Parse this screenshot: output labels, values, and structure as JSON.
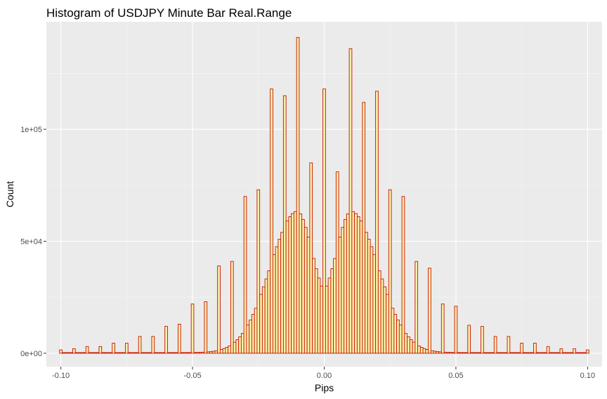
{
  "chart_data": {
    "type": "bar",
    "title": "Histogram of USDJPY Minute Bar Real.Range",
    "xlabel": "Pips",
    "ylabel": "Count",
    "xlim": [
      -0.1055,
      0.1055
    ],
    "ylim": [
      -6000,
      148000
    ],
    "xticks": [
      -0.1,
      -0.05,
      0.0,
      0.05,
      0.1
    ],
    "xtick_labels": [
      "-0.10",
      "-0.05",
      "0.00",
      "0.05",
      "0.10"
    ],
    "yticks": [
      0,
      50000,
      100000
    ],
    "ytick_labels": [
      "0e+00",
      "5e+04",
      "1e+05"
    ],
    "bin_width": 0.001,
    "bins_from": -0.1,
    "bins_to": 0.1,
    "spikes": [
      {
        "x": -0.1,
        "count": 1500
      },
      {
        "x": -0.095,
        "count": 2000
      },
      {
        "x": -0.09,
        "count": 3000
      },
      {
        "x": -0.085,
        "count": 3000
      },
      {
        "x": -0.08,
        "count": 4500
      },
      {
        "x": -0.075,
        "count": 4500
      },
      {
        "x": -0.07,
        "count": 7500
      },
      {
        "x": -0.065,
        "count": 7500
      },
      {
        "x": -0.06,
        "count": 12000
      },
      {
        "x": -0.055,
        "count": 13000
      },
      {
        "x": -0.05,
        "count": 22000
      },
      {
        "x": -0.045,
        "count": 23000
      },
      {
        "x": -0.04,
        "count": 39000
      },
      {
        "x": -0.035,
        "count": 41000
      },
      {
        "x": -0.03,
        "count": 70000
      },
      {
        "x": -0.025,
        "count": 73000
      },
      {
        "x": -0.02,
        "count": 118000
      },
      {
        "x": -0.015,
        "count": 115000
      },
      {
        "x": -0.01,
        "count": 141000
      },
      {
        "x": -0.005,
        "count": 85000
      },
      {
        "x": 0.0,
        "count": 118000
      },
      {
        "x": 0.005,
        "count": 81000
      },
      {
        "x": 0.01,
        "count": 136000
      },
      {
        "x": 0.015,
        "count": 112000
      },
      {
        "x": 0.02,
        "count": 117000
      },
      {
        "x": 0.025,
        "count": 73000
      },
      {
        "x": 0.03,
        "count": 70000
      },
      {
        "x": 0.035,
        "count": 41000
      },
      {
        "x": 0.04,
        "count": 38000
      },
      {
        "x": 0.045,
        "count": 22000
      },
      {
        "x": 0.05,
        "count": 21000
      },
      {
        "x": 0.055,
        "count": 12500
      },
      {
        "x": 0.06,
        "count": 12000
      },
      {
        "x": 0.065,
        "count": 7500
      },
      {
        "x": 0.07,
        "count": 7500
      },
      {
        "x": 0.075,
        "count": 4500
      },
      {
        "x": 0.08,
        "count": 4500
      },
      {
        "x": 0.085,
        "count": 3000
      },
      {
        "x": 0.09,
        "count": 2000
      },
      {
        "x": 0.095,
        "count": 2000
      },
      {
        "x": 0.1,
        "count": 1500
      }
    ],
    "mode_peaks": [
      {
        "x": -0.01,
        "count": 63500
      },
      {
        "x": 0.01,
        "count": 63500
      }
    ],
    "center_dip_count": 27000,
    "tail_count": 300,
    "grid": true,
    "colors": {
      "fill": "#f5f0a8",
      "outline": "#cc1100",
      "panel": "#ebebeb",
      "grid_major": "#ffffff",
      "grid_minor": "#f5f5f5",
      "tick": "#333333",
      "tick_label": "#4d4d4d"
    }
  }
}
